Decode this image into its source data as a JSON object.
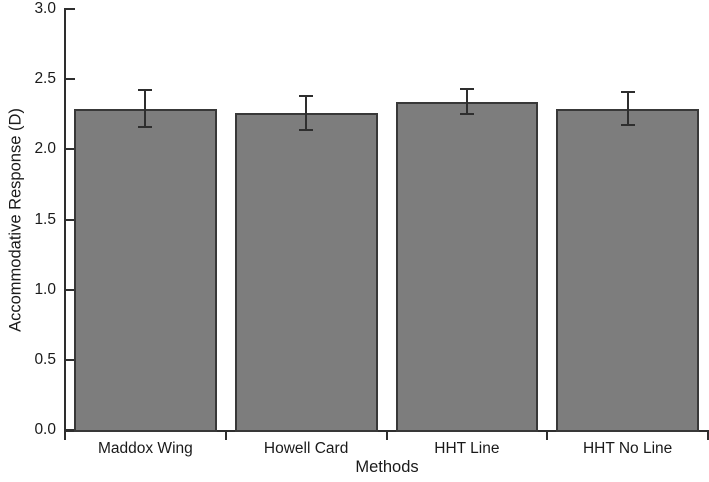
{
  "figure": {
    "background": "#ffffff"
  },
  "chart_data": {
    "type": "bar",
    "title": "",
    "xlabel": "Methods",
    "ylabel": "Accommodative Response (D)",
    "categories": [
      "Maddox Wing",
      "Howell Card",
      "HHT Line",
      "HHT No Line"
    ],
    "values": [
      2.29,
      2.26,
      2.34,
      2.29
    ],
    "error_bars": [
      0.13,
      0.12,
      0.09,
      0.12
    ],
    "ylim": [
      0.0,
      3.0
    ],
    "yticks": [
      0.0,
      0.5,
      1.0,
      1.5,
      2.0,
      2.5,
      3.0
    ],
    "ytick_labels": [
      "0.0",
      "0.5",
      "1.0",
      "1.5",
      "2.0",
      "2.5",
      "3.0"
    ],
    "grid": false,
    "legend": null,
    "bar_fill_color": "#7d7d7d",
    "bar_border_color": "#383838",
    "error_bar_color": "#2e2e2e",
    "axis_color": "#2e2e2e",
    "text_color": "#1a1a1a"
  }
}
